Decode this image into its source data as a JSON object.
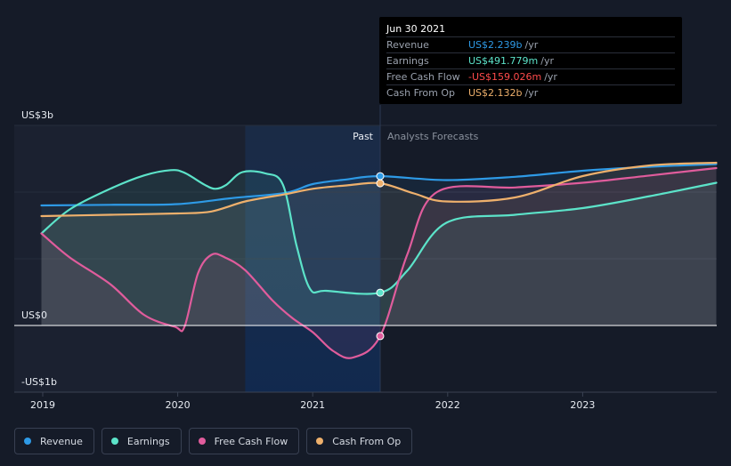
{
  "chart_data": {
    "type": "line",
    "y_axis_labels": [
      "US$3b",
      "US$0",
      "-US$1b"
    ],
    "x_axis_labels": [
      "2019",
      "2020",
      "2021",
      "2022",
      "2023"
    ],
    "region_labels": {
      "past": "Past",
      "forecast": "Analysts Forecasts"
    },
    "ylim": [
      -1000,
      3000
    ],
    "unit": "US$m",
    "divider_date": 2021.5,
    "highlight_band": [
      2020.5,
      2021.5
    ],
    "grid": true,
    "series": [
      {
        "name": "Revenue",
        "color": "#2e9ae6",
        "points": [
          [
            2018.99,
            1800
          ],
          [
            2019.5,
            1810
          ],
          [
            2020,
            1820
          ],
          [
            2020.4,
            1910
          ],
          [
            2020.8,
            1990
          ],
          [
            2021.0,
            2120
          ],
          [
            2021.25,
            2190
          ],
          [
            2021.5,
            2239
          ],
          [
            2021.99,
            2180
          ],
          [
            2022.5,
            2230
          ],
          [
            2023,
            2320
          ],
          [
            2023.5,
            2380
          ],
          [
            2023.99,
            2420
          ]
        ]
      },
      {
        "name": "Earnings",
        "color": "#5ce3c9",
        "points": [
          [
            2018.99,
            1380
          ],
          [
            2019.2,
            1740
          ],
          [
            2019.5,
            2050
          ],
          [
            2019.75,
            2250
          ],
          [
            2019.95,
            2330
          ],
          [
            2020.05,
            2290
          ],
          [
            2020.2,
            2110
          ],
          [
            2020.28,
            2050
          ],
          [
            2020.36,
            2110
          ],
          [
            2020.48,
            2300
          ],
          [
            2020.65,
            2280
          ],
          [
            2020.78,
            2110
          ],
          [
            2020.88,
            1200
          ],
          [
            2020.98,
            550
          ],
          [
            2021.1,
            520
          ],
          [
            2021.5,
            491.779
          ],
          [
            2021.7,
            820
          ],
          [
            2021.99,
            1540
          ],
          [
            2022.5,
            1660
          ],
          [
            2023,
            1760
          ],
          [
            2023.5,
            1940
          ],
          [
            2023.99,
            2140
          ]
        ]
      },
      {
        "name": "Free Cash Flow",
        "color": "#e05c9c",
        "points": [
          [
            2018.99,
            1380
          ],
          [
            2019.2,
            1020
          ],
          [
            2019.5,
            620
          ],
          [
            2019.75,
            160
          ],
          [
            2019.98,
            -20
          ],
          [
            2020.05,
            -20
          ],
          [
            2020.15,
            780
          ],
          [
            2020.25,
            1060
          ],
          [
            2020.35,
            1020
          ],
          [
            2020.5,
            830
          ],
          [
            2020.7,
            380
          ],
          [
            2020.85,
            110
          ],
          [
            2021.0,
            -100
          ],
          [
            2021.15,
            -380
          ],
          [
            2021.3,
            -480
          ],
          [
            2021.5,
            -159.026
          ],
          [
            2021.7,
            1060
          ],
          [
            2021.92,
            2000
          ],
          [
            2022.5,
            2070
          ],
          [
            2023,
            2140
          ],
          [
            2023.5,
            2250
          ],
          [
            2023.99,
            2360
          ]
        ]
      },
      {
        "name": "Cash From Op",
        "color": "#eeb06c",
        "points": [
          [
            2018.99,
            1640
          ],
          [
            2019.5,
            1660
          ],
          [
            2020,
            1680
          ],
          [
            2020.25,
            1710
          ],
          [
            2020.5,
            1860
          ],
          [
            2020.8,
            1970
          ],
          [
            2021.0,
            2050
          ],
          [
            2021.25,
            2100
          ],
          [
            2021.5,
            2132
          ],
          [
            2021.75,
            1980
          ],
          [
            2021.99,
            1860
          ],
          [
            2022.5,
            1920
          ],
          [
            2023,
            2240
          ],
          [
            2023.5,
            2400
          ],
          [
            2023.99,
            2440
          ]
        ]
      }
    ]
  },
  "tooltip": {
    "date": "Jun 30 2021",
    "rows": [
      {
        "label": "Revenue",
        "value": "US$2.239b",
        "unit": "/yr",
        "color": "#2e9ae6"
      },
      {
        "label": "Earnings",
        "value": "US$491.779m",
        "unit": "/yr",
        "color": "#5ce3c9"
      },
      {
        "label": "Free Cash Flow",
        "value": "-US$159.026m",
        "unit": "/yr",
        "color": "#ff4b4b"
      },
      {
        "label": "Cash From Op",
        "value": "US$2.132b",
        "unit": "/yr",
        "color": "#eeb06c"
      }
    ]
  },
  "legend": [
    {
      "label": "Revenue",
      "color": "#2e9ae6"
    },
    {
      "label": "Earnings",
      "color": "#5ce3c9"
    },
    {
      "label": "Free Cash Flow",
      "color": "#e05c9c"
    },
    {
      "label": "Cash From Op",
      "color": "#eeb06c"
    }
  ]
}
